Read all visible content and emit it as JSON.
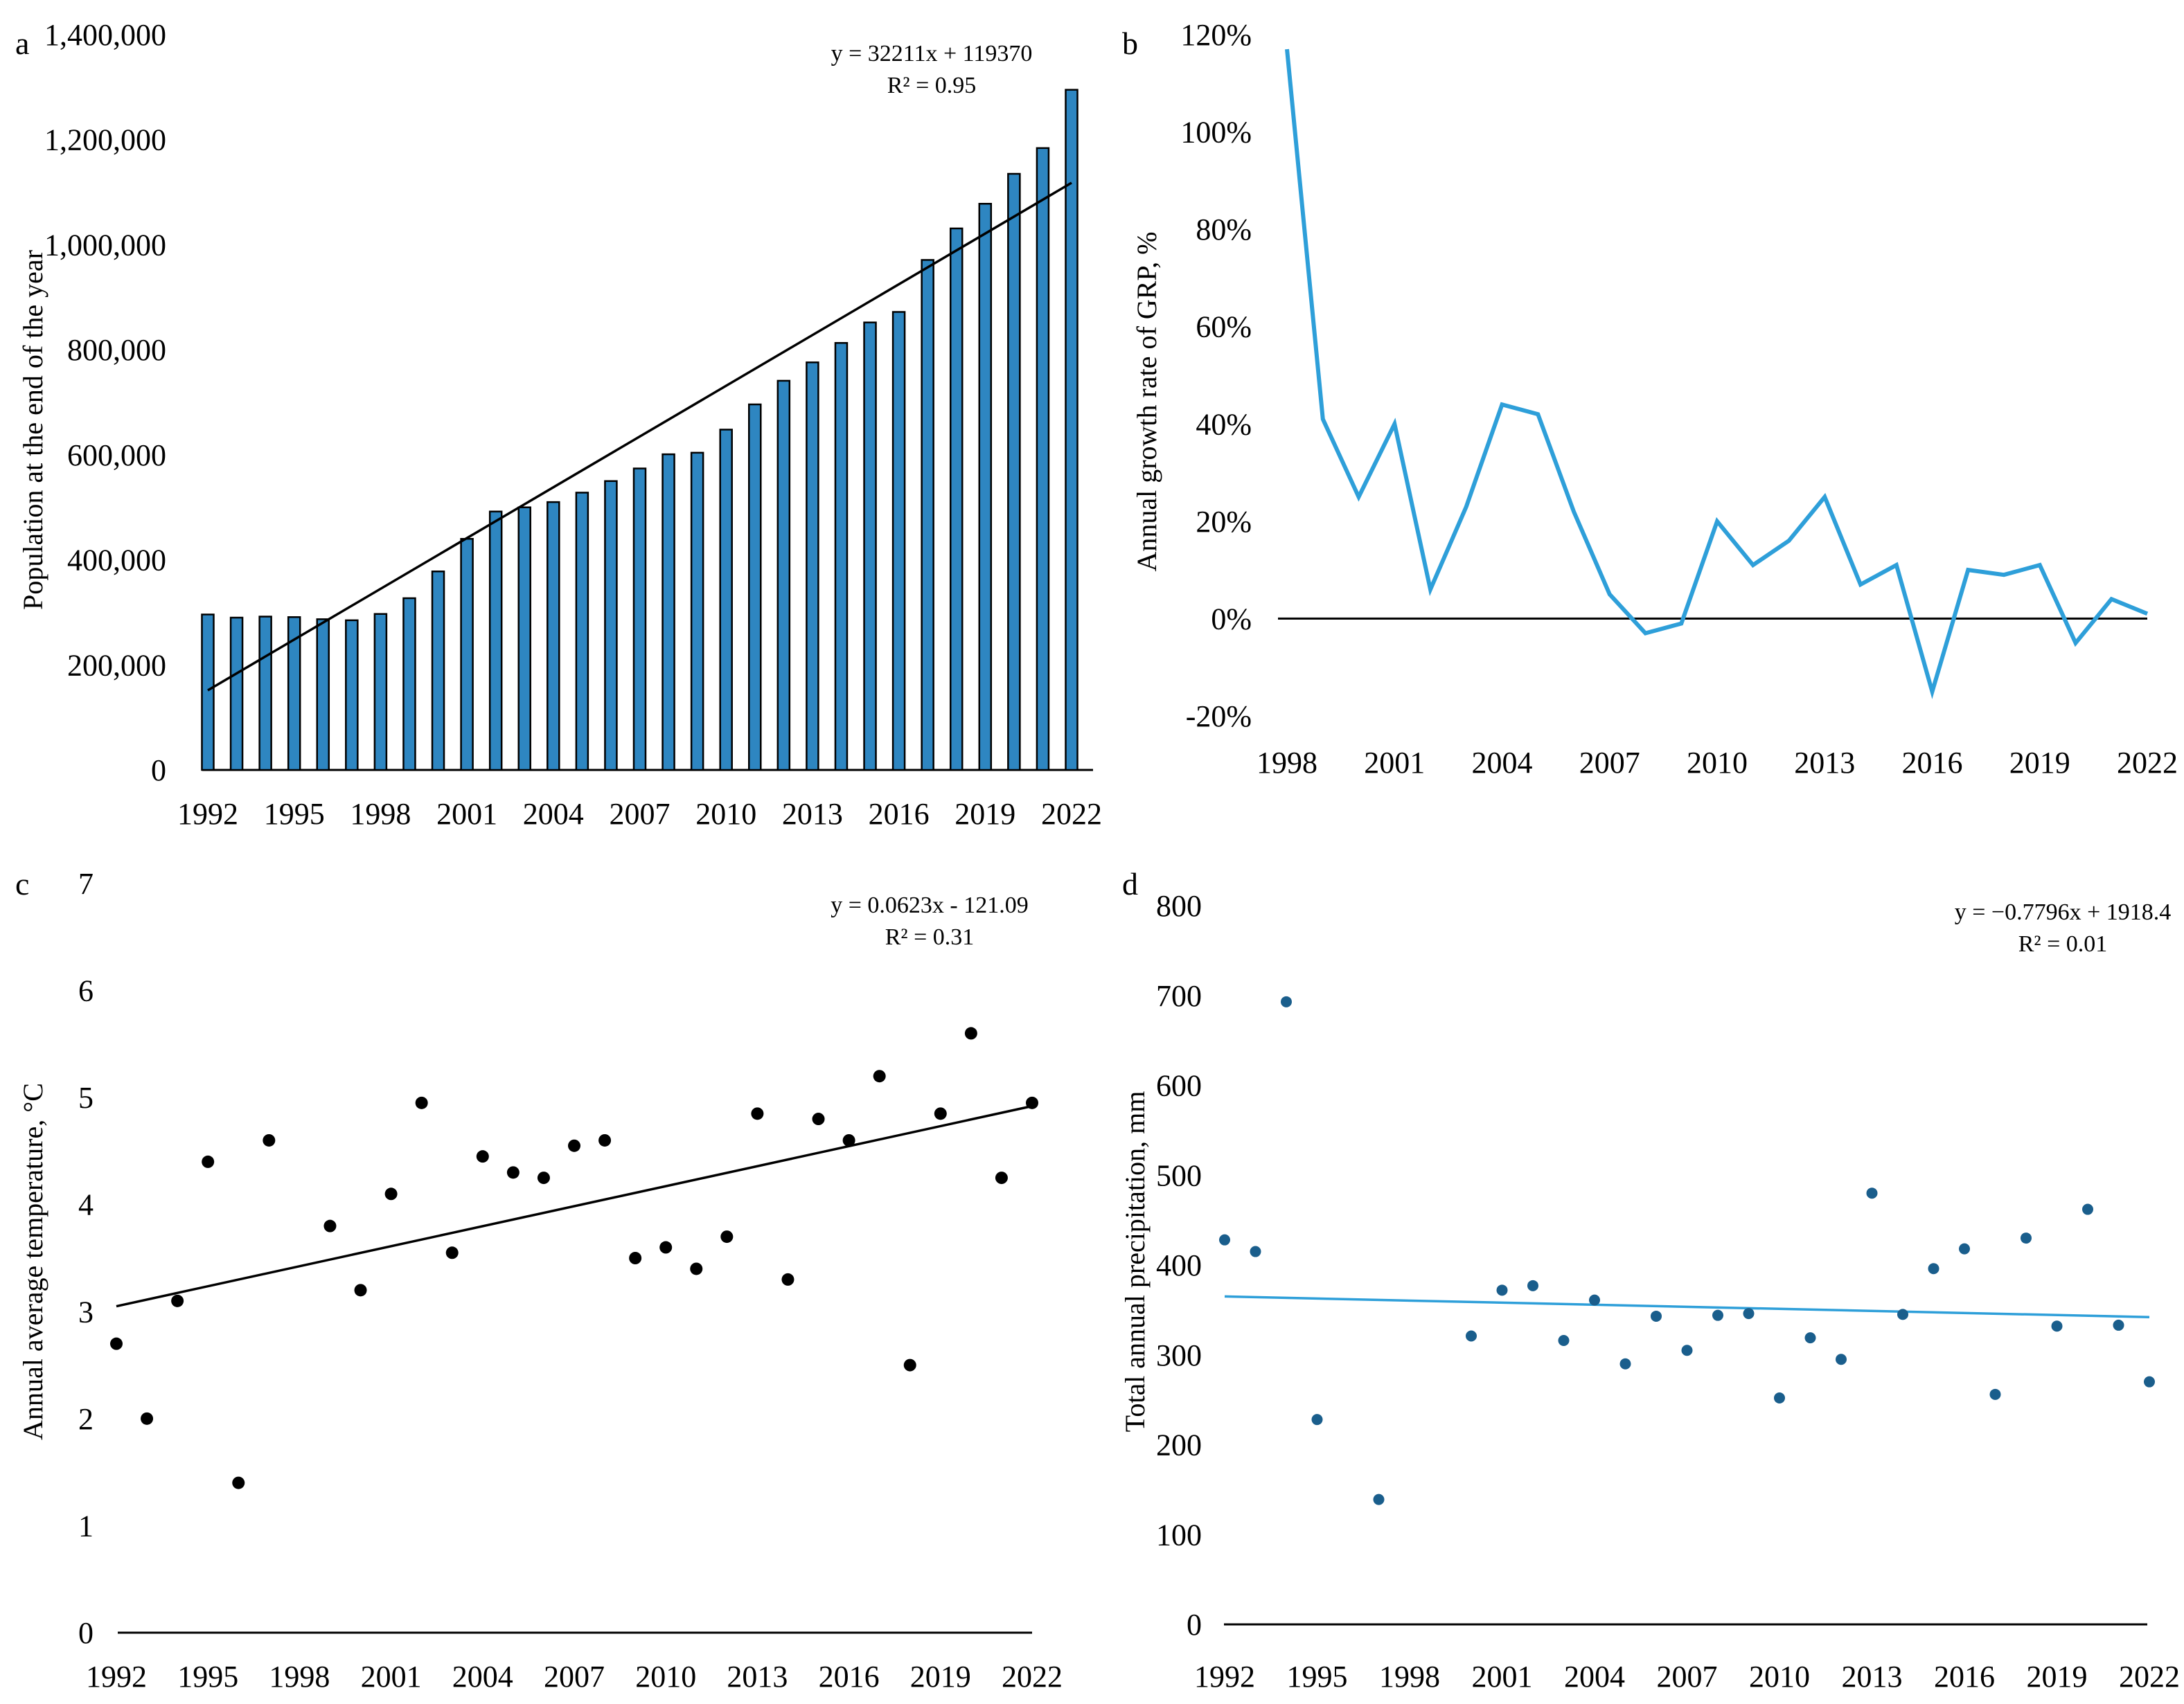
{
  "chart_data": [
    {
      "panel": "a",
      "type": "bar",
      "ylabel": "Population at the end of the year",
      "xlabel": "",
      "ylim": [
        0,
        1400000
      ],
      "y_ticks": [
        "0",
        "200,000",
        "400,000",
        "600,000",
        "800,000",
        "1,000,000",
        "1,200,000",
        "1,400,000"
      ],
      "x_tick_labels": [
        "1992",
        "1995",
        "1998",
        "2001",
        "2004",
        "2007",
        "2010",
        "2013",
        "2016",
        "2019",
        "2022"
      ],
      "categories": [
        1992,
        1993,
        1994,
        1995,
        1996,
        1997,
        1998,
        1999,
        2000,
        2001,
        2002,
        2003,
        2004,
        2005,
        2006,
        2007,
        2008,
        2009,
        2010,
        2011,
        2012,
        2013,
        2014,
        2015,
        2016,
        2017,
        2018,
        2019,
        2020,
        2021,
        2022
      ],
      "values": [
        296000,
        290000,
        292000,
        291000,
        287000,
        285000,
        297000,
        327000,
        378000,
        440000,
        492000,
        500000,
        510000,
        528000,
        550000,
        574000,
        601000,
        604000,
        648000,
        696000,
        741000,
        776000,
        813000,
        852000,
        872000,
        971000,
        1031000,
        1078000,
        1135000,
        1184000,
        1295000
      ],
      "bar_color": "#2E86C1",
      "trendline": {
        "equation": "y = 32211x + 119370",
        "r2": "R² = 0.95",
        "slope": 32211,
        "intercept": 119370
      }
    },
    {
      "panel": "b",
      "type": "line",
      "ylabel": "Annual growth rate of  GRP, %",
      "xlabel": "",
      "ylim": [
        -20,
        120
      ],
      "y_ticks": [
        "-20%",
        "0%",
        "20%",
        "40%",
        "60%",
        "80%",
        "100%",
        "120%"
      ],
      "x_tick_labels": [
        "1998",
        "2001",
        "2004",
        "2007",
        "2010",
        "2013",
        "2016",
        "2019",
        "2022"
      ],
      "x": [
        1998,
        1999,
        2000,
        2001,
        2002,
        2003,
        2004,
        2005,
        2006,
        2007,
        2008,
        2009,
        2010,
        2011,
        2012,
        2013,
        2014,
        2015,
        2016,
        2017,
        2018,
        2019,
        2020,
        2021,
        2022
      ],
      "values": [
        117,
        41,
        25,
        40,
        6,
        23,
        44,
        42,
        22,
        5,
        -3,
        -1,
        20,
        11,
        16,
        25,
        7,
        11,
        -15,
        10,
        9,
        11,
        -5,
        4,
        1
      ],
      "line_color": "#2E9FD9"
    },
    {
      "panel": "c",
      "type": "scatter",
      "ylabel": "Annual average temperature, °C",
      "xlabel": "",
      "ylim": [
        0,
        7
      ],
      "y_ticks": [
        "0",
        "1",
        "2",
        "3",
        "4",
        "5",
        "6",
        "7"
      ],
      "x_tick_labels": [
        "1992",
        "1995",
        "1998",
        "2001",
        "2004",
        "2007",
        "2010",
        "2013",
        "2016",
        "2019",
        "2022"
      ],
      "x": [
        1992,
        1993,
        1994,
        1995,
        1996,
        1997,
        1999,
        2000,
        2001,
        2002,
        2003,
        2004,
        2005,
        2006,
        2007,
        2008,
        2009,
        2010,
        2011,
        2012,
        2013,
        2014,
        2015,
        2016,
        2017,
        2018,
        2019,
        2020,
        2021,
        2022
      ],
      "values": [
        2.7,
        2.0,
        3.1,
        4.4,
        1.4,
        4.6,
        3.8,
        3.2,
        4.1,
        4.95,
        3.55,
        4.45,
        4.3,
        4.25,
        4.55,
        4.6,
        3.5,
        3.6,
        3.4,
        3.7,
        4.85,
        3.3,
        4.8,
        4.6,
        5.2,
        2.5,
        4.85,
        5.6,
        4.25,
        4.95
      ],
      "marker_color": "#000000",
      "trendline": {
        "equation": "y = 0.0623x - 121.09",
        "r2": "R² = 0.31",
        "start": [
          1992,
          3.05
        ],
        "end": [
          2022,
          4.92
        ]
      }
    },
    {
      "panel": "d",
      "type": "scatter",
      "ylabel": "Total annual precipitation, mm",
      "xlabel": "",
      "ylim": [
        0,
        800
      ],
      "y_ticks": [
        "0",
        "100",
        "200",
        "300",
        "400",
        "500",
        "600",
        "700",
        "800"
      ],
      "x_tick_labels": [
        "1992",
        "1995",
        "1998",
        "2001",
        "2004",
        "2007",
        "2010",
        "2013",
        "2016",
        "2019",
        "2022"
      ],
      "x": [
        1992,
        1993,
        1994,
        1995,
        1997,
        2000,
        2001,
        2002,
        2003,
        2004,
        2005,
        2006,
        2007,
        2008,
        2009,
        2010,
        2011,
        2012,
        2013,
        2014,
        2015,
        2016,
        2017,
        2018,
        2019,
        2020,
        2021,
        2022
      ],
      "values": [
        428,
        415,
        693,
        228,
        139,
        321,
        372,
        377,
        316,
        361,
        290,
        343,
        305,
        344,
        346,
        252,
        319,
        295,
        480,
        345,
        396,
        418,
        256,
        430,
        332,
        462,
        333,
        270
      ],
      "marker_color": "#1A5E8C",
      "trendline": {
        "equation": "y = −0.7796x + 1918.4",
        "r2": "R² = 0.01",
        "start": [
          1992,
          365
        ],
        "end": [
          2022,
          342
        ],
        "color": "#2E9FD9"
      }
    }
  ]
}
